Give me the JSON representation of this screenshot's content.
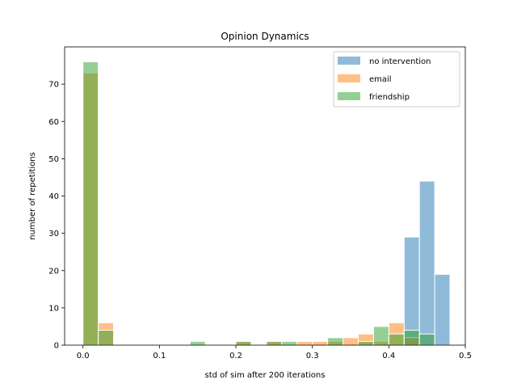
{
  "chart_data": {
    "type": "bar",
    "title": "Opinion Dynamics",
    "xlabel": "std of sim after 200 iterations",
    "ylabel": "number of repetitions",
    "xlim": [
      -0.024,
      0.5
    ],
    "ylim": [
      0,
      80
    ],
    "xticks": [
      0.0,
      0.1,
      0.2,
      0.3,
      0.4,
      0.5
    ],
    "xtick_labels": [
      "0.0",
      "0.1",
      "0.2",
      "0.3",
      "0.4",
      "0.5"
    ],
    "yticks": [
      0,
      10,
      20,
      30,
      40,
      50,
      60,
      70
    ],
    "ytick_labels": [
      "0",
      "10",
      "20",
      "30",
      "40",
      "50",
      "60",
      "70"
    ],
    "grid": false,
    "legend_position": "top-right",
    "bin_width": 0.02,
    "opacity": 0.5,
    "series": [
      {
        "name": "no intervention",
        "color": "#1f77b4",
        "bins": [
          {
            "x": 0.43,
            "y": 29
          },
          {
            "x": 0.45,
            "y": 44
          },
          {
            "x": 0.47,
            "y": 19
          }
        ]
      },
      {
        "name": "email",
        "color": "#ff7f0e",
        "bins": [
          {
            "x": 0.01,
            "y": 73
          },
          {
            "x": 0.03,
            "y": 6
          },
          {
            "x": 0.21,
            "y": 1
          },
          {
            "x": 0.25,
            "y": 1
          },
          {
            "x": 0.29,
            "y": 1
          },
          {
            "x": 0.31,
            "y": 1
          },
          {
            "x": 0.33,
            "y": 1
          },
          {
            "x": 0.35,
            "y": 2
          },
          {
            "x": 0.37,
            "y": 3
          },
          {
            "x": 0.39,
            "y": 1
          },
          {
            "x": 0.41,
            "y": 6
          },
          {
            "x": 0.43,
            "y": 2
          }
        ]
      },
      {
        "name": "friendship",
        "color": "#2ca02c",
        "bins": [
          {
            "x": 0.01,
            "y": 76
          },
          {
            "x": 0.03,
            "y": 4
          },
          {
            "x": 0.15,
            "y": 1
          },
          {
            "x": 0.21,
            "y": 1
          },
          {
            "x": 0.25,
            "y": 1
          },
          {
            "x": 0.27,
            "y": 1
          },
          {
            "x": 0.33,
            "y": 2
          },
          {
            "x": 0.37,
            "y": 1
          },
          {
            "x": 0.39,
            "y": 5
          },
          {
            "x": 0.41,
            "y": 3
          },
          {
            "x": 0.43,
            "y": 4
          },
          {
            "x": 0.45,
            "y": 3
          }
        ]
      }
    ]
  }
}
